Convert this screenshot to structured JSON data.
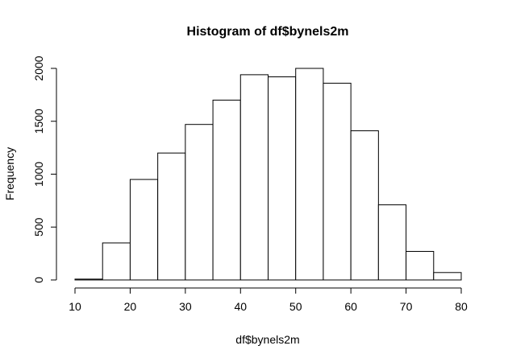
{
  "chart_data": {
    "type": "bar",
    "title": "Histogram of df$bynels2m",
    "xlabel": "df$bynels2m",
    "ylabel": "Frequency",
    "bin_edges": [
      10,
      15,
      20,
      25,
      30,
      35,
      40,
      45,
      50,
      55,
      60,
      65,
      70,
      75,
      80
    ],
    "values": [
      8,
      350,
      950,
      1200,
      1470,
      1700,
      1940,
      1920,
      2000,
      1860,
      1410,
      710,
      270,
      70
    ],
    "xlim": [
      10,
      80
    ],
    "ylim": [
      0,
      2000
    ],
    "x_ticks": [
      "10",
      "20",
      "30",
      "40",
      "50",
      "60",
      "70",
      "80"
    ],
    "y_ticks": [
      "0",
      "500",
      "1000",
      "1500",
      "2000"
    ],
    "bar_fill": "#ffffff",
    "bar_stroke": "#000000",
    "grid": false,
    "legend": "none"
  }
}
